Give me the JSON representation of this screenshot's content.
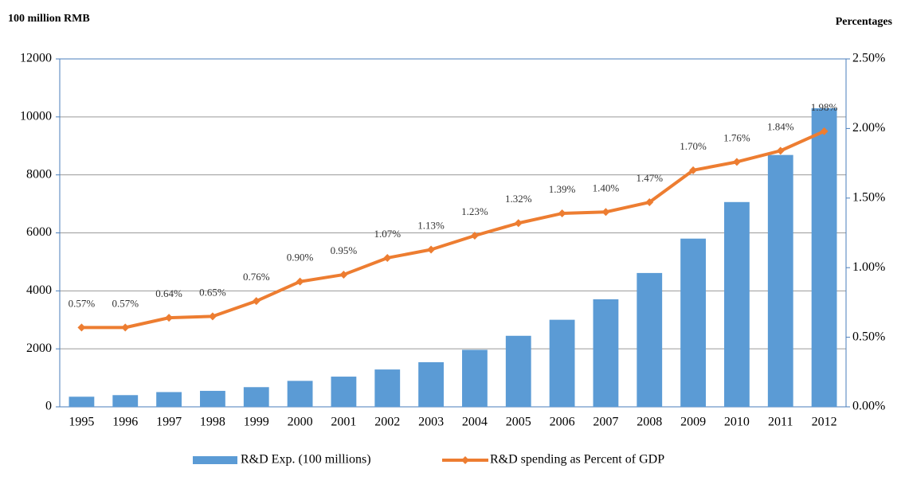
{
  "chart_data": {
    "type": "bar-line",
    "y_axis_label": "100 million RMB",
    "y2_axis_label": "Percentages",
    "categories": [
      "1995",
      "1996",
      "1997",
      "1998",
      "1999",
      "2000",
      "2001",
      "2002",
      "2003",
      "2004",
      "2005",
      "2006",
      "2007",
      "2008",
      "2009",
      "2010",
      "2011",
      "2012"
    ],
    "series": [
      {
        "name": "R&D Exp. (100 millions)",
        "type": "bar",
        "color": "#5b9bd5",
        "values": [
          349,
          404,
          509,
          551,
          679,
          896,
          1042,
          1288,
          1540,
          1966,
          2450,
          3003,
          3710,
          4616,
          5802,
          7063,
          8687,
          10298
        ]
      },
      {
        "name": "R&D spending as Percent of GDP",
        "type": "line",
        "axis": "y2",
        "color": "#ed7d31",
        "values": [
          0.57,
          0.57,
          0.64,
          0.65,
          0.76,
          0.9,
          0.95,
          1.07,
          1.13,
          1.23,
          1.32,
          1.39,
          1.4,
          1.47,
          1.7,
          1.76,
          1.84,
          1.98
        ],
        "value_labels": [
          "0.57%",
          "0.57%",
          "0.64%",
          "0.65%",
          "0.76%",
          "0.90%",
          "0.95%",
          "1.07%",
          "1.13%",
          "1.23%",
          "1.32%",
          "1.39%",
          "1.40%",
          "1.47%",
          "1.70%",
          "1.76%",
          "1.84%",
          "1.98%"
        ]
      }
    ],
    "ylim": [
      0,
      12000
    ],
    "yticks": [
      0,
      2000,
      4000,
      6000,
      8000,
      10000,
      12000
    ],
    "y2lim": [
      0,
      2.5
    ],
    "y2ticks": [
      {
        "value": 0,
        "label": "0.00%"
      },
      {
        "value": 0.5,
        "label": "0.50%"
      },
      {
        "value": 1.0,
        "label": "1.00%"
      },
      {
        "value": 1.5,
        "label": "1.50%"
      },
      {
        "value": 2.0,
        "label": "2.00%"
      },
      {
        "value": 2.5,
        "label": "2.50%"
      }
    ],
    "grid": true,
    "legend": "bottom"
  }
}
